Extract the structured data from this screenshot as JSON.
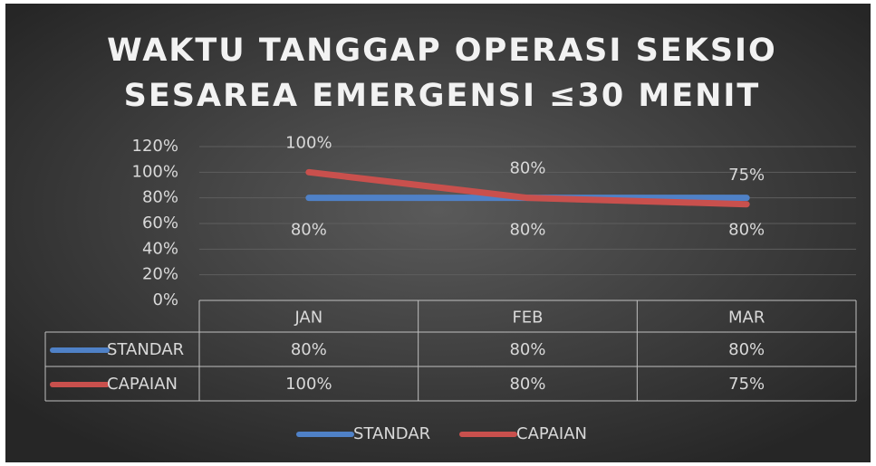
{
  "chart_data": {
    "type": "line",
    "title": [
      "WAKTU TANGGAP OPERASI SEKSIO",
      "SESAREA EMERGENSI ≤30 MENIT"
    ],
    "categories": [
      "JAN",
      "FEB",
      "MAR"
    ],
    "series": [
      {
        "name": "STANDAR",
        "color": "#4f81c7",
        "values": [
          80,
          80,
          80
        ],
        "value_labels": [
          "80%",
          "80%",
          "80%"
        ]
      },
      {
        "name": "CAPAIAN",
        "color": "#c9504d",
        "values": [
          100,
          80,
          75
        ],
        "value_labels": [
          "100%",
          "80%",
          "75%"
        ]
      }
    ],
    "ylim": [
      0,
      120
    ],
    "yticks": [
      {
        "value": 0,
        "label": "0%"
      },
      {
        "value": 20,
        "label": "20%"
      },
      {
        "value": 40,
        "label": "40%"
      },
      {
        "value": 60,
        "label": "60%"
      },
      {
        "value": 80,
        "label": "80%"
      },
      {
        "value": 100,
        "label": "100%"
      },
      {
        "value": 120,
        "label": "120%"
      }
    ],
    "grid": true,
    "data_table": true,
    "legend": "bottom"
  }
}
